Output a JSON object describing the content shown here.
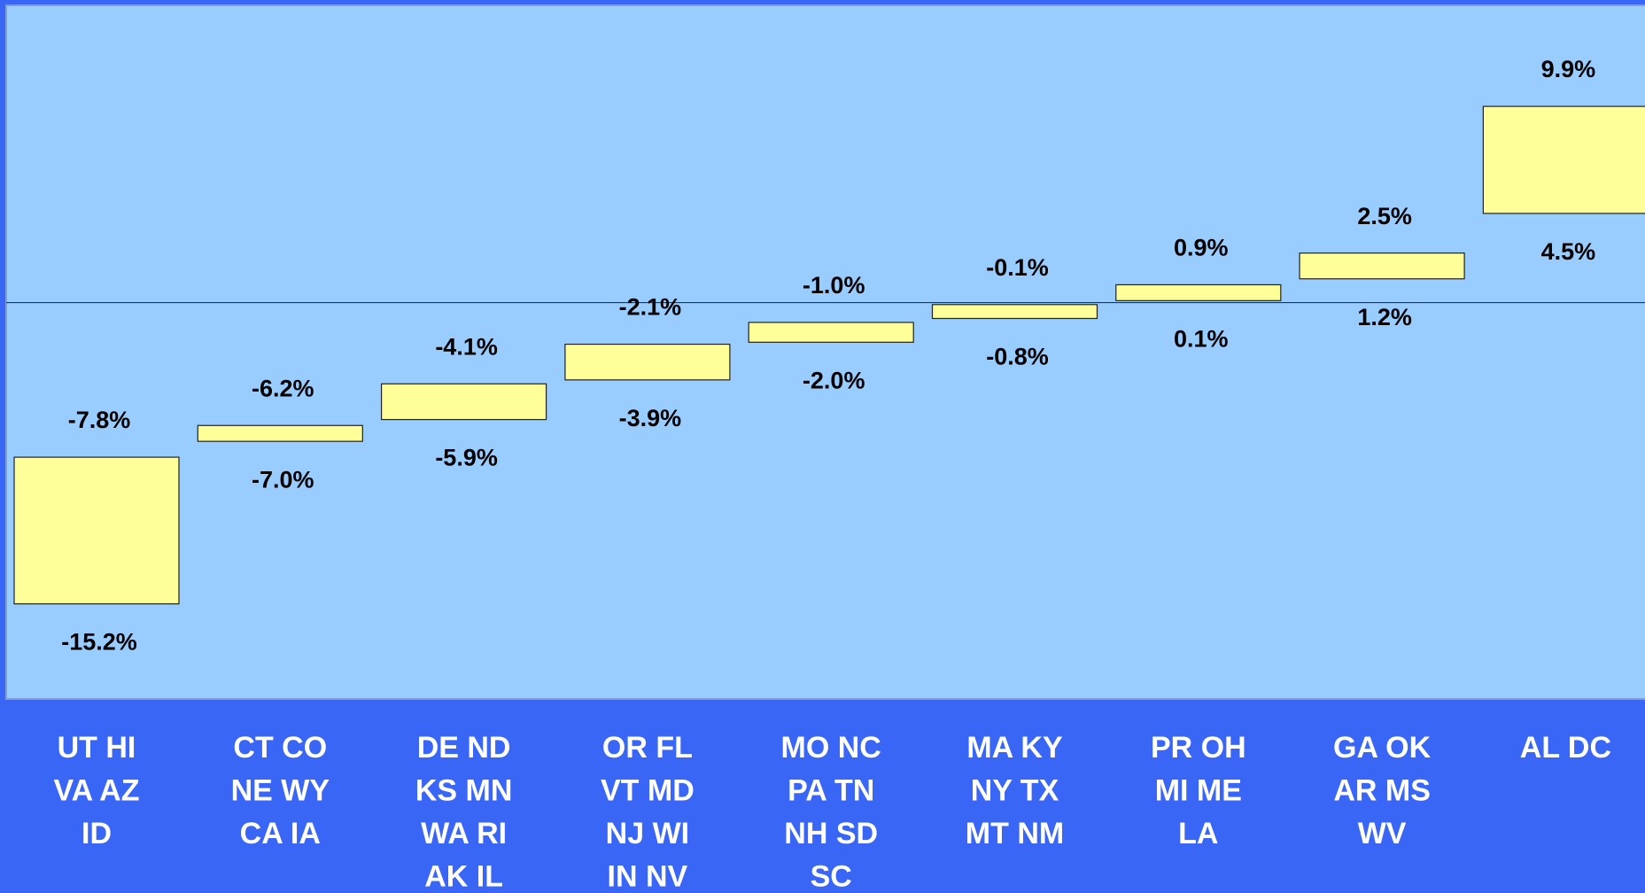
{
  "chart_data": {
    "type": "floating_bar",
    "categories": [
      [
        "UT HI",
        "VA AZ",
        "ID"
      ],
      [
        "CT CO",
        "NE WY",
        "CA IA"
      ],
      [
        "DE ND",
        "KS MN",
        "WA RI",
        "AK IL"
      ],
      [
        "OR FL",
        "VT MD",
        "NJ WI",
        "IN NV"
      ],
      [
        "MO NC",
        "PA TN",
        "NH SD",
        "SC"
      ],
      [
        "MA KY",
        "NY TX",
        "MT NM"
      ],
      [
        "PR OH",
        "MI ME",
        "LA"
      ],
      [
        "GA OK",
        "AR MS",
        "WV"
      ],
      [
        "AL DC"
      ]
    ],
    "series": [
      {
        "values": [
          -15.2,
          -7.0,
          -5.9,
          -3.9,
          -2.0,
          -0.8,
          0.1,
          1.2,
          4.5
        ],
        "value_labels": [
          "-15.2%",
          "-7.0%",
          "-5.9%",
          "-3.9%",
          "-2.0%",
          "-0.8%",
          "0.1%",
          "1.2%",
          "4.5%"
        ]
      },
      {
        "values": [
          -7.8,
          -6.2,
          -4.1,
          -2.1,
          -1.0,
          -0.1,
          0.9,
          2.5,
          9.9
        ],
        "value_labels": [
          "-7.8%",
          "-6.2%",
          "-4.1%",
          "-2.1%",
          "-1.0%",
          "-0.1%",
          "0.9%",
          "2.5%",
          "9.9%"
        ]
      }
    ],
    "color": "#ffff99",
    "ylim": [
      -20,
      15
    ]
  }
}
